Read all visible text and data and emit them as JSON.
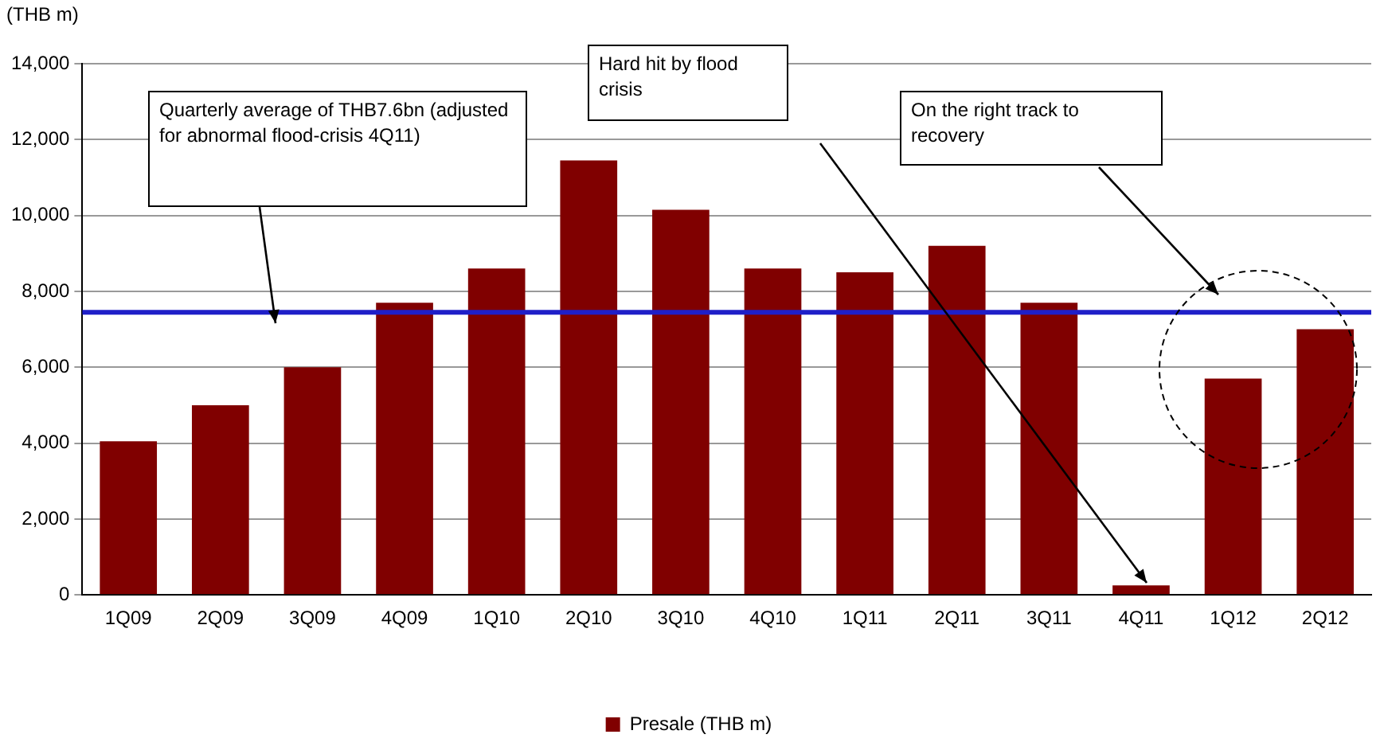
{
  "chart_data": {
    "type": "bar",
    "ylabel": "(THB m)",
    "categories": [
      "1Q09",
      "2Q09",
      "3Q09",
      "4Q09",
      "1Q10",
      "2Q10",
      "3Q10",
      "4Q10",
      "1Q11",
      "2Q11",
      "3Q11",
      "4Q11",
      "1Q12",
      "2Q12"
    ],
    "series": [
      {
        "name": "Presale (THB m)",
        "color": "#800000",
        "values": [
          4050,
          5000,
          6000,
          7700,
          8600,
          11450,
          10150,
          8600,
          8500,
          9200,
          7700,
          250,
          5700,
          7000
        ]
      }
    ],
    "ylim": [
      0,
      14000
    ],
    "yticks": [
      0,
      {
        "value": 2000,
        "label": "2,000"
      },
      {
        "value": 4000,
        "label": "4,000"
      },
      {
        "value": 6000,
        "label": "6,000"
      },
      {
        "value": 8000,
        "label": "8,000"
      },
      {
        "value": 10000,
        "label": "10,000"
      },
      {
        "value": 12000,
        "label": "12,000"
      },
      {
        "value": 14000,
        "label": "14,000"
      }
    ],
    "grid": "y",
    "legend": "bottom",
    "ref_lines": [
      {
        "axis": "y",
        "value": 7450,
        "color": "#1f1fc8"
      }
    ],
    "annotations": [
      "Quarterly average of THB7.6bn (adjusted for abnormal flood-crisis 4Q11)",
      "Hard hit by flood crisis",
      "On the right track to recovery"
    ]
  }
}
